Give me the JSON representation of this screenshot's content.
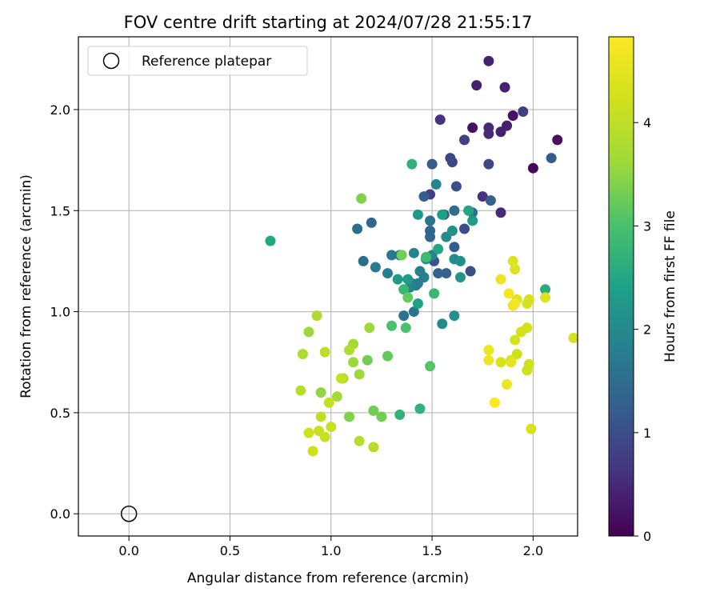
{
  "chart_data": {
    "type": "scatter",
    "title": "FOV centre drift starting at 2024/07/28 21:55:17",
    "xlabel": "Angular distance from reference (arcmin)",
    "ylabel": "Rotation from reference (arcmin)",
    "xlim": [
      -0.25,
      2.22
    ],
    "ylim": [
      -0.11,
      2.36
    ],
    "x_ticks": [
      "0.0",
      "0.5",
      "1.0",
      "1.5",
      "2.0"
    ],
    "y_ticks": [
      "0.0",
      "0.5",
      "1.0",
      "1.5",
      "2.0"
    ],
    "grid": true,
    "legend": {
      "placement": "top-left",
      "entries": [
        "Reference platepar"
      ]
    },
    "colorbar": {
      "label": "Hours from first FF file",
      "range": [
        0,
        4.83
      ],
      "ticks": [
        "0",
        "1",
        "2",
        "3",
        "4"
      ],
      "colormap": "viridis"
    },
    "reference_point": {
      "name": "Reference platepar",
      "x": 0.0,
      "y": 0.0
    },
    "series": [
      {
        "points": [
          [
            2.0,
            1.71,
            0.1
          ],
          [
            1.7,
            1.91,
            0.2
          ],
          [
            1.9,
            1.97,
            0.2
          ],
          [
            2.12,
            1.85,
            0.2
          ],
          [
            1.87,
            1.92,
            0.4
          ],
          [
            1.84,
            1.89,
            0.4
          ],
          [
            1.78,
            2.24,
            0.4
          ],
          [
            1.72,
            2.12,
            0.4
          ],
          [
            1.86,
            2.11,
            0.4
          ],
          [
            1.78,
            1.88,
            0.5
          ],
          [
            1.78,
            1.91,
            0.5
          ],
          [
            1.84,
            1.49,
            0.5
          ],
          [
            1.75,
            1.57,
            0.6
          ],
          [
            1.54,
            1.95,
            0.6
          ],
          [
            1.95,
            1.99,
            0.8
          ],
          [
            1.66,
            1.85,
            0.8
          ],
          [
            1.78,
            1.73,
            0.9
          ],
          [
            1.49,
            1.58,
            0.8
          ],
          [
            1.59,
            1.76,
            0.9
          ],
          [
            1.6,
            1.74,
            0.9
          ],
          [
            1.62,
            1.62,
            1.0
          ],
          [
            1.66,
            1.41,
            1.0
          ],
          [
            1.69,
            1.2,
            1.0
          ],
          [
            1.56,
            1.48,
            1.1
          ],
          [
            1.51,
            1.25,
            1.1
          ],
          [
            2.09,
            1.76,
            1.2
          ],
          [
            1.5,
            1.73,
            1.2
          ],
          [
            1.46,
            1.57,
            1.2
          ],
          [
            1.61,
            1.32,
            1.2
          ],
          [
            1.79,
            1.55,
            1.3
          ],
          [
            1.53,
            1.19,
            1.3
          ],
          [
            1.57,
            1.19,
            1.3
          ],
          [
            1.49,
            1.37,
            1.4
          ],
          [
            1.49,
            1.4,
            1.4
          ],
          [
            1.2,
            1.44,
            1.4
          ],
          [
            1.16,
            1.25,
            1.5
          ],
          [
            1.13,
            1.41,
            1.5
          ],
          [
            1.61,
            1.5,
            1.5
          ],
          [
            1.7,
            1.49,
            1.6
          ],
          [
            1.41,
            1.0,
            1.6
          ],
          [
            1.36,
            0.98,
            1.6
          ],
          [
            1.49,
            1.45,
            1.6
          ],
          [
            1.22,
            1.22,
            1.7
          ],
          [
            1.34,
            1.28,
            1.7
          ],
          [
            1.3,
            1.28,
            1.7
          ],
          [
            1.28,
            1.19,
            1.8
          ],
          [
            1.44,
            1.2,
            1.8
          ],
          [
            1.46,
            1.17,
            1.8
          ],
          [
            1.43,
            1.14,
            1.8
          ],
          [
            1.4,
            1.14,
            1.8
          ],
          [
            1.42,
            1.13,
            1.8
          ],
          [
            1.39,
            1.12,
            1.9
          ],
          [
            1.41,
            1.29,
            1.9
          ],
          [
            1.5,
            1.28,
            1.9
          ],
          [
            1.52,
            1.63,
            1.9
          ],
          [
            1.55,
            0.94,
            2.0
          ],
          [
            1.61,
            1.26,
            2.0
          ],
          [
            1.57,
            1.37,
            2.0
          ],
          [
            1.47,
            1.26,
            2.1
          ],
          [
            1.6,
            1.4,
            2.1
          ],
          [
            1.61,
            0.98,
            2.1
          ],
          [
            1.64,
            1.25,
            2.1
          ],
          [
            1.64,
            1.17,
            2.2
          ],
          [
            1.43,
            1.48,
            2.2
          ],
          [
            1.7,
            1.45,
            2.3
          ],
          [
            1.33,
            1.16,
            2.3
          ],
          [
            1.38,
            1.16,
            2.3
          ],
          [
            1.43,
            1.04,
            2.4
          ],
          [
            1.36,
            1.11,
            2.4
          ],
          [
            1.55,
            1.48,
            2.4
          ],
          [
            1.53,
            1.31,
            2.5
          ],
          [
            1.68,
            1.5,
            2.5
          ],
          [
            0.7,
            1.35,
            2.5
          ],
          [
            2.06,
            1.11,
            2.6
          ],
          [
            1.34,
            0.49,
            2.7
          ],
          [
            1.44,
            0.52,
            2.7
          ],
          [
            1.4,
            1.73,
            2.7
          ],
          [
            1.36,
            1.11,
            2.8
          ],
          [
            1.51,
            1.09,
            2.8
          ],
          [
            1.47,
            1.27,
            2.9
          ],
          [
            1.3,
            0.93,
            3.0
          ],
          [
            1.37,
            0.92,
            3.0
          ],
          [
            1.49,
            0.73,
            3.1
          ],
          [
            1.28,
            0.78,
            3.2
          ],
          [
            1.38,
            1.07,
            3.2
          ],
          [
            1.35,
            1.28,
            3.3
          ],
          [
            1.18,
            0.76,
            3.3
          ],
          [
            1.25,
            0.48,
            3.3
          ],
          [
            1.21,
            0.51,
            3.3
          ],
          [
            1.09,
            0.48,
            3.4
          ],
          [
            1.15,
            1.56,
            3.4
          ],
          [
            1.19,
            0.92,
            3.6
          ],
          [
            1.06,
            0.67,
            3.7
          ],
          [
            1.11,
            0.84,
            3.7
          ],
          [
            1.11,
            0.75,
            3.6
          ],
          [
            1.14,
            0.69,
            3.6
          ],
          [
            0.95,
            0.6,
            3.5
          ],
          [
            0.89,
            0.9,
            3.6
          ],
          [
            1.03,
            0.58,
            3.7
          ],
          [
            0.93,
            0.98,
            3.8
          ],
          [
            1.09,
            0.81,
            3.8
          ],
          [
            0.86,
            0.79,
            3.8
          ],
          [
            0.85,
            0.61,
            3.9
          ],
          [
            1.14,
            0.36,
            3.9
          ],
          [
            1.21,
            0.33,
            3.9
          ],
          [
            0.95,
            0.48,
            4.0
          ],
          [
            0.97,
            0.8,
            4.0
          ],
          [
            0.99,
            0.55,
            4.1
          ],
          [
            1.0,
            0.43,
            4.1
          ],
          [
            1.05,
            0.67,
            4.1
          ],
          [
            0.94,
            0.41,
            4.1
          ],
          [
            0.97,
            0.38,
            4.1
          ],
          [
            0.89,
            0.4,
            4.2
          ],
          [
            0.91,
            0.31,
            4.2
          ],
          [
            1.92,
            0.79,
            4.2
          ],
          [
            1.97,
            0.71,
            4.2
          ],
          [
            1.98,
            0.74,
            4.2
          ],
          [
            1.91,
            0.86,
            4.3
          ],
          [
            1.94,
            0.9,
            4.3
          ],
          [
            1.97,
            0.92,
            4.3
          ],
          [
            1.97,
            1.04,
            4.3
          ],
          [
            1.98,
            1.06,
            4.3
          ],
          [
            2.2,
            0.87,
            4.3
          ],
          [
            1.99,
            0.42,
            4.3
          ],
          [
            1.84,
            0.75,
            4.3
          ],
          [
            1.89,
            0.76,
            4.4
          ],
          [
            1.91,
            1.21,
            4.4
          ],
          [
            1.9,
            1.25,
            4.4
          ],
          [
            1.92,
            1.06,
            4.4
          ],
          [
            1.9,
            1.03,
            4.4
          ],
          [
            2.06,
            1.07,
            4.4
          ],
          [
            1.89,
            0.75,
            4.5
          ],
          [
            1.87,
            0.64,
            4.6
          ],
          [
            1.9,
            1.03,
            4.6
          ],
          [
            1.84,
            1.16,
            4.6
          ],
          [
            1.78,
            0.76,
            4.6
          ],
          [
            1.78,
            0.81,
            4.6
          ],
          [
            1.88,
            1.09,
            4.7
          ],
          [
            1.91,
            1.04,
            4.7
          ],
          [
            1.81,
            0.55,
            4.8
          ]
        ]
      }
    ]
  }
}
